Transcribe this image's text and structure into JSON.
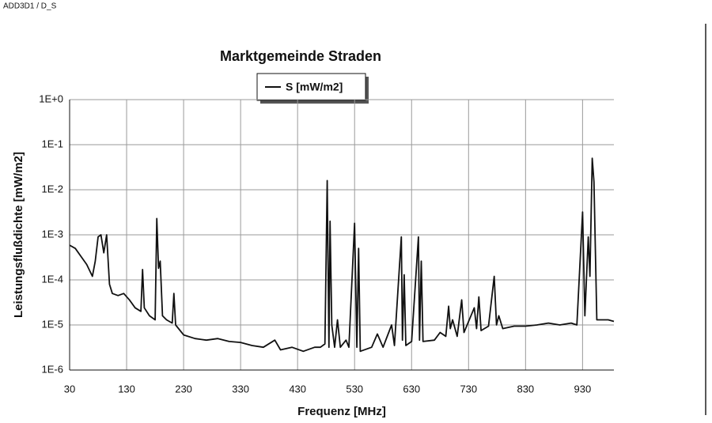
{
  "header": "ADD3D1 / D_S",
  "chart_data": {
    "type": "line",
    "title": "Marktgemeinde Straden",
    "x_label": "Frequenz [MHz]",
    "y_label": "Leistungsflußdichte [mW/m2]",
    "y_log_scale": true,
    "grid": true,
    "legend_position": "top",
    "xlim": [
      30,
      985
    ],
    "xticks": [
      30,
      130,
      230,
      330,
      430,
      530,
      630,
      730,
      830,
      930
    ],
    "ylim": [
      1e-06,
      1
    ],
    "yticks": [
      {
        "value": 1,
        "label": "1E+0"
      },
      {
        "value": 0.1,
        "label": "1E-1"
      },
      {
        "value": 0.01,
        "label": "1E-2"
      },
      {
        "value": 0.001,
        "label": "1E-3"
      },
      {
        "value": 0.0001,
        "label": "1E-4"
      },
      {
        "value": 1e-05,
        "label": "1E-5"
      },
      {
        "value": 1e-06,
        "label": "1E-6"
      }
    ],
    "x": [
      30,
      40,
      50,
      60,
      70,
      75,
      80,
      85,
      90,
      95,
      100,
      105,
      115,
      125,
      135,
      145,
      155,
      158,
      161,
      170,
      180,
      183,
      186,
      189,
      193,
      200,
      210,
      213,
      216,
      230,
      250,
      270,
      290,
      310,
      330,
      350,
      370,
      390,
      400,
      420,
      440,
      460,
      470,
      478,
      482,
      485,
      487,
      490,
      495,
      500,
      505,
      515,
      520,
      530,
      534,
      537,
      540,
      560,
      570,
      580,
      595,
      600,
      612,
      614,
      617,
      620,
      630,
      642,
      644,
      647,
      650,
      670,
      680,
      690,
      695,
      698,
      702,
      710,
      718,
      722,
      740,
      744,
      748,
      752,
      765,
      775,
      779,
      783,
      790,
      810,
      830,
      850,
      870,
      890,
      910,
      920,
      930,
      934,
      940,
      943,
      947,
      950,
      955,
      965,
      975,
      985
    ],
    "series": [
      {
        "name": "S [mW/m2]",
        "color": "#111111",
        "values": [
          0.00059,
          0.0005,
          0.00033,
          0.00022,
          0.00012,
          0.00026,
          0.0009,
          0.001,
          0.0004,
          0.001,
          8e-05,
          5e-05,
          4.5e-05,
          5e-05,
          3.6e-05,
          2.4e-05,
          2e-05,
          0.00017,
          2.4e-05,
          1.6e-05,
          1.3e-05,
          0.0023,
          0.00018,
          0.00026,
          1.6e-05,
          1.3e-05,
          1.1e-05,
          5e-05,
          1e-05,
          6e-06,
          5e-06,
          4.6e-06,
          5e-06,
          4.3e-06,
          4.1e-06,
          3.5e-06,
          3.2e-06,
          4.6e-06,
          2.8e-06,
          3.2e-06,
          2.6e-06,
          3.2e-06,
          3.2e-06,
          3.8e-06,
          0.016,
          3.2e-06,
          0.002,
          1e-05,
          3.2e-06,
          1.3e-05,
          3.2e-06,
          4.6e-06,
          3.2e-06,
          0.0018,
          3.2e-06,
          0.0005,
          2.6e-06,
          3.2e-06,
          6.3e-06,
          3.2e-06,
          1e-05,
          3.5e-06,
          0.0009,
          4.6e-06,
          0.00013,
          3.5e-06,
          4.3e-06,
          0.0009,
          4.6e-06,
          0.00026,
          4.3e-06,
          4.6e-06,
          6.8e-06,
          5.6e-06,
          2.6e-05,
          8.3e-06,
          1.3e-05,
          5.6e-06,
          3.6e-05,
          6.8e-06,
          2.4e-05,
          8.3e-06,
          4.2e-05,
          7.5e-06,
          9.4e-06,
          0.00012,
          1e-05,
          1.6e-05,
          8.3e-06,
          9.4e-06,
          9.4e-06,
          1e-05,
          1.1e-05,
          1e-05,
          1.1e-05,
          1e-05,
          0.0032,
          1.6e-05,
          0.0009,
          0.00012,
          0.05,
          0.015,
          1.3e-05,
          1.3e-05,
          1.3e-05,
          1.2e-05
        ]
      }
    ]
  }
}
